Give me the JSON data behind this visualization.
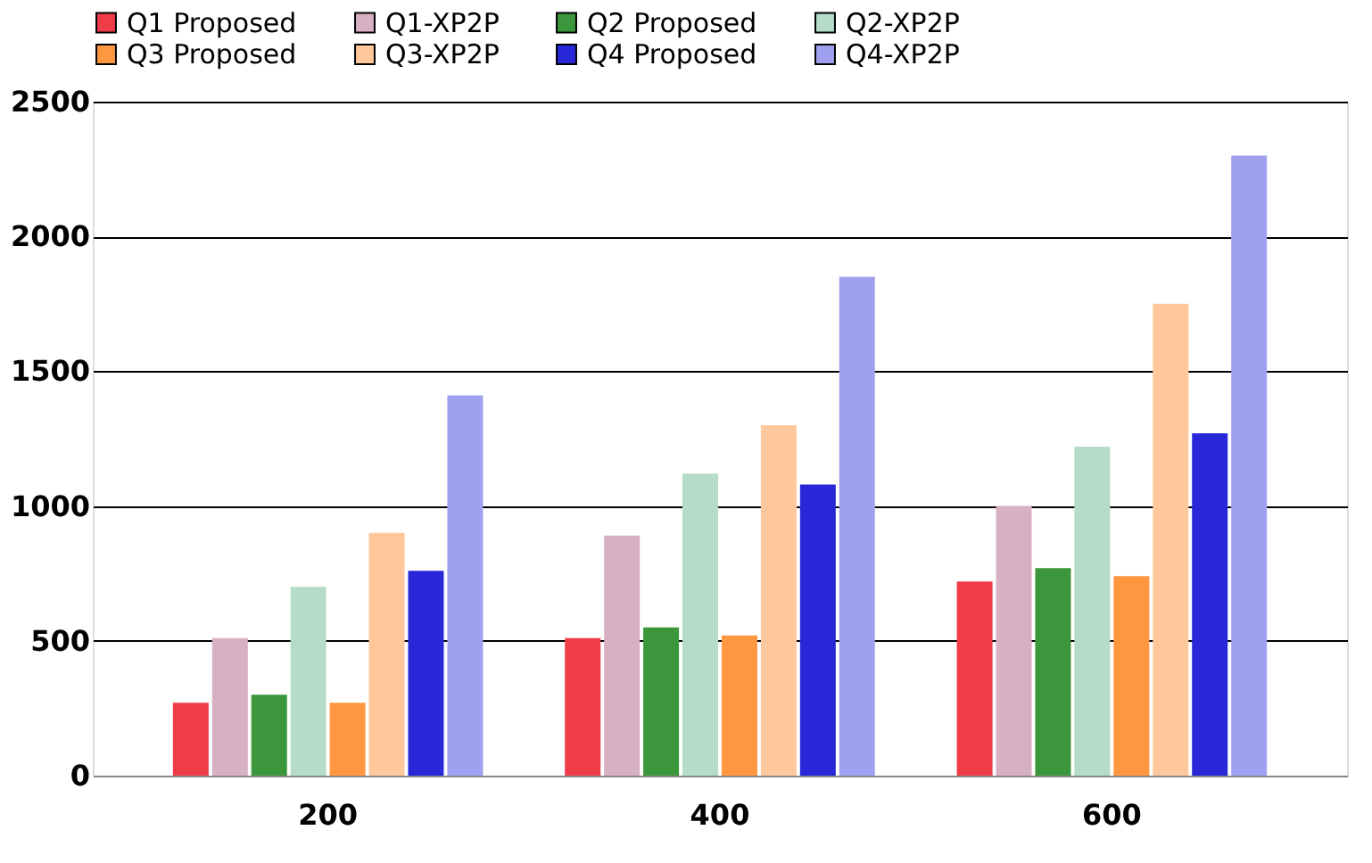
{
  "chart_data": {
    "type": "bar",
    "categories": [
      "200",
      "400",
      "600"
    ],
    "series": [
      {
        "name": "Q1 Proposed",
        "color": "#f03c48",
        "values": [
          270,
          510,
          720
        ]
      },
      {
        "name": "Q1-XP2P",
        "color": "#d8b0c4",
        "values": [
          510,
          890,
          1000
        ]
      },
      {
        "name": "Q2 Proposed",
        "color": "#3c963c",
        "values": [
          300,
          550,
          770
        ]
      },
      {
        "name": "Q2-XP2P",
        "color": "#b4dcc8",
        "values": [
          700,
          1120,
          1220
        ]
      },
      {
        "name": "Q3 Proposed",
        "color": "#ff9640",
        "values": [
          270,
          520,
          740
        ]
      },
      {
        "name": "Q3-XP2P",
        "color": "#ffc89c",
        "values": [
          900,
          1300,
          1750
        ]
      },
      {
        "name": "Q4 Proposed",
        "color": "#2828d8",
        "values": [
          760,
          1080,
          1270
        ]
      },
      {
        "name": "Q4-XP2P",
        "color": "#a0a0f0",
        "values": [
          1410,
          1850,
          2300
        ]
      }
    ],
    "ylim": [
      0,
      2500
    ],
    "yticks": [
      0,
      500,
      1000,
      1500,
      2000,
      2500
    ],
    "grid": "y",
    "legend": "top"
  }
}
